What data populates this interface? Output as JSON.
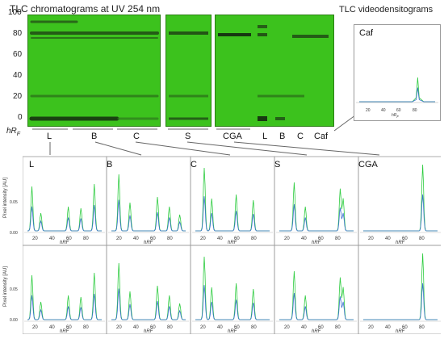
{
  "figure": {
    "title_plates": "TLC chromatograms at UV 254 nm",
    "title_videodensitograms": "TLC videodensitograms"
  },
  "plate_axis": {
    "ticks": [
      "100",
      "80",
      "60",
      "40",
      "20",
      "0"
    ],
    "label_main": "hR",
    "label_sub": "F"
  },
  "lanes": {
    "group1": [
      "L",
      "B",
      "C"
    ],
    "group2": [
      "S"
    ],
    "group3": [
      "CGA",
      "L",
      "B",
      "C",
      "Caf"
    ]
  },
  "caf_panel": {
    "title": "Caf",
    "x_ticks": [
      "20",
      "40",
      "60",
      "80"
    ],
    "x_label": "hR",
    "x_label_sub": "F"
  },
  "densitograms": {
    "columns": [
      "L",
      "B",
      "C",
      "S",
      "CGA"
    ],
    "y_label": "Pixel intensity [AU]",
    "y_ticks": [
      "0.05",
      "0.00"
    ],
    "x_ticks": [
      "20",
      "40",
      "60",
      "80"
    ],
    "x_label": "hR",
    "x_label_sub": "F"
  },
  "chart_data": [
    {
      "type": "line",
      "name": "Caf",
      "xlim": [
        0,
        100
      ],
      "series": [
        {
          "color": "#2ecc40",
          "points": [
            [
              0,
              0.02
            ],
            [
              70,
              0.02
            ],
            [
              75,
              0.03
            ],
            [
              77,
              0.08
            ],
            [
              79,
              0.03
            ],
            [
              85,
              0.02
            ],
            [
              100,
              0.02
            ]
          ]
        },
        {
          "color": "#3b6fd0",
          "points": [
            [
              0,
              0.02
            ],
            [
              70,
              0.02
            ],
            [
              75,
              0.025
            ],
            [
              77,
              0.055
            ],
            [
              79,
              0.025
            ],
            [
              85,
              0.02
            ],
            [
              100,
              0.02
            ]
          ]
        }
      ]
    }
  ],
  "colors": {
    "plate_green": "#3cc21d",
    "green_trace": "#2ecc40",
    "blue_trace": "#3b6fd0"
  }
}
